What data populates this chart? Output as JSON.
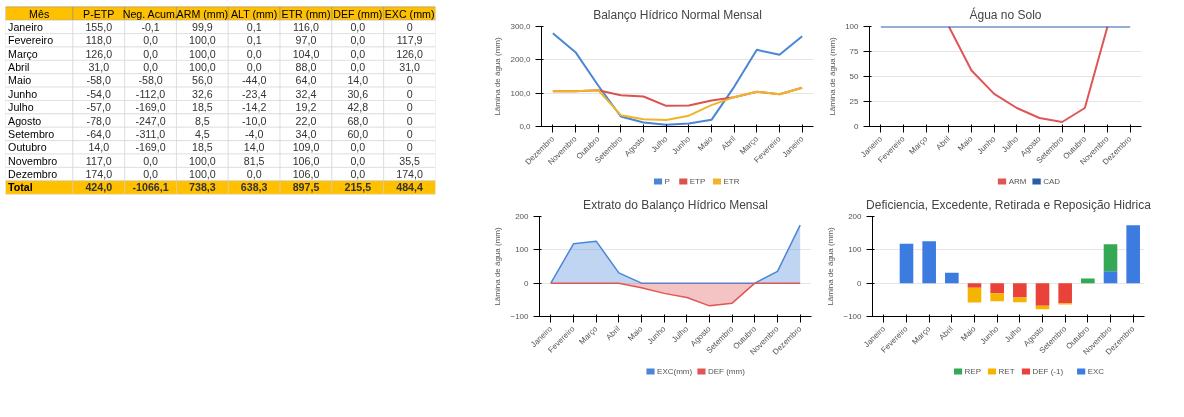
{
  "chart_data": [
    {
      "type": "heatmap",
      "ylabel": "Mês",
      "categories": [
        "P-ETP",
        "Neg. Acum.",
        "ARM (mm)",
        "ALT (mm)",
        "ETR (mm)",
        "DEF (mm)",
        "EXC (mm)"
      ],
      "y_categories": [
        "Janeiro",
        "Fevereiro",
        "Março",
        "Abril",
        "Maio",
        "Junho",
        "Julho",
        "Agosto",
        "Setembro",
        "Outubro",
        "Novembro",
        "Dezembro",
        "Total"
      ],
      "cells": [
        [
          155.0,
          -0.1,
          99.9,
          0.1,
          116.0,
          0.0,
          0
        ],
        [
          118.0,
          0.0,
          100.0,
          0.1,
          97.0,
          0.0,
          117.9
        ],
        [
          126.0,
          0.0,
          100.0,
          0.0,
          104.0,
          0.0,
          126.0
        ],
        [
          31.0,
          0.0,
          100.0,
          0.0,
          88.0,
          0.0,
          31.0
        ],
        [
          -58.0,
          -58.0,
          56.0,
          -44.0,
          64.0,
          14.0,
          0
        ],
        [
          -54.0,
          -112.0,
          32.6,
          -23.4,
          32.4,
          30.6,
          0
        ],
        [
          -57.0,
          -169.0,
          18.5,
          -14.2,
          19.2,
          42.8,
          0
        ],
        [
          -78.0,
          -247.0,
          8.5,
          -10.0,
          22.0,
          68.0,
          0
        ],
        [
          -64.0,
          -311.0,
          4.5,
          -4.0,
          34.0,
          60.0,
          0
        ],
        [
          14.0,
          -169.0,
          18.5,
          14.0,
          109.0,
          0.0,
          0
        ],
        [
          117.0,
          0.0,
          100.0,
          81.5,
          106.0,
          0.0,
          35.5
        ],
        [
          174.0,
          0.0,
          100.0,
          0.0,
          106.0,
          0.0,
          174.0
        ],
        [
          424.0,
          -1066.1,
          738.3,
          638.3,
          897.5,
          215.5,
          484.4
        ]
      ],
      "cell_labels": [
        [
          "155,0",
          "-0,1",
          "99,9",
          "0,1",
          "116,0",
          "0,0",
          "0"
        ],
        [
          "118,0",
          "0,0",
          "100,0",
          "0,1",
          "97,0",
          "0,0",
          "117,9"
        ],
        [
          "126,0",
          "0,0",
          "100,0",
          "0,0",
          "104,0",
          "0,0",
          "126,0"
        ],
        [
          "31,0",
          "0,0",
          "100,0",
          "0,0",
          "88,0",
          "0,0",
          "31,0"
        ],
        [
          "-58,0",
          "-58,0",
          "56,0",
          "-44,0",
          "64,0",
          "14,0",
          "0"
        ],
        [
          "-54,0",
          "-112,0",
          "32,6",
          "-23,4",
          "32,4",
          "30,6",
          "0"
        ],
        [
          "-57,0",
          "-169,0",
          "18,5",
          "-14,2",
          "19,2",
          "42,8",
          "0"
        ],
        [
          "-78,0",
          "-247,0",
          "8,5",
          "-10,0",
          "22,0",
          "68,0",
          "0"
        ],
        [
          "-64,0",
          "-311,0",
          "4,5",
          "-4,0",
          "34,0",
          "60,0",
          "0"
        ],
        [
          "14,0",
          "-169,0",
          "18,5",
          "14,0",
          "109,0",
          "0,0",
          "0"
        ],
        [
          "117,0",
          "0,0",
          "100,0",
          "81,5",
          "106,0",
          "0,0",
          "35,5"
        ],
        [
          "174,0",
          "0,0",
          "100,0",
          "0,0",
          "106,0",
          "0,0",
          "174,0"
        ],
        [
          "424,0",
          "-1066,1",
          "738,3",
          "638,3",
          "897,5",
          "215,5",
          "484,4"
        ]
      ]
    },
    {
      "type": "line",
      "title": "Balanço Hídrico Normal Mensal",
      "ylabel": "Lâmina de água (mm)",
      "categories": [
        "Dezembro",
        "Novembro",
        "Outubro",
        "Setembro",
        "Agosto",
        "Julho",
        "Junho",
        "Maio",
        "Abril",
        "Março",
        "Fevereiro",
        "Janeiro"
      ],
      "ylim": [
        0,
        300
      ],
      "yticks": [
        {
          "value": 0,
          "label": "0,0"
        },
        {
          "value": 100,
          "label": "100,0"
        },
        {
          "value": 200,
          "label": "200,0"
        },
        {
          "value": 300,
          "label": "300,0"
        }
      ],
      "grid": "y",
      "legend": "bottom",
      "series": [
        {
          "name": "P",
          "color": "#4a86d8",
          "values": [
            280,
            223,
            123,
            30,
            12,
            5,
            9,
            20,
            119,
            230,
            215,
            271
          ]
        },
        {
          "name": "ETP",
          "color": "#d9534f",
          "values": [
            106,
            106,
            109,
            94,
            90,
            62,
            63,
            78,
            88,
            104,
            97,
            116
          ]
        },
        {
          "name": "ETR",
          "color": "#f0b429",
          "values": [
            106,
            106,
            109,
            34,
            22,
            19.2,
            32.4,
            64,
            88,
            104,
            97,
            116
          ]
        }
      ]
    },
    {
      "type": "line",
      "title": "Água no Solo",
      "ylabel": "Lâmina de água (mm)",
      "categories": [
        "Janeiro",
        "Fevereiro",
        "Março",
        "Abril",
        "Maio",
        "Junho",
        "Julho",
        "Agosto",
        "Setembro",
        "Outubro",
        "Novembro",
        "Dezembro"
      ],
      "ylim": [
        0,
        100
      ],
      "yticks": [
        0,
        25,
        50,
        75,
        100
      ],
      "grid": "y",
      "legend": "bottom",
      "series": [
        {
          "name": "ARM",
          "color": "#e05555",
          "values": [
            null,
            null,
            null,
            100,
            56,
            32.6,
            18.5,
            8.5,
            4.5,
            18.5,
            100,
            null
          ]
        },
        {
          "name": "CAD",
          "color": "#2a5caa",
          "values": [
            100,
            100,
            100,
            100,
            100,
            100,
            100,
            100,
            100,
            100,
            100,
            100
          ]
        }
      ]
    },
    {
      "type": "area",
      "title": "Extrato do Balanço Hídrico Mensal",
      "ylabel": "Lâmina de água (mm)",
      "categories": [
        "Janeiro",
        "Fevereiro",
        "Março",
        "Abril",
        "Maio",
        "Junho",
        "Julho",
        "Agosto",
        "Setembro",
        "Outubro",
        "Novembro",
        "Dezembro"
      ],
      "ylim": [
        -100,
        200
      ],
      "yticks": [
        -100,
        0,
        100,
        200
      ],
      "grid": "y",
      "legend": "bottom",
      "series": [
        {
          "name": "EXC(mm)",
          "color": "#4a86d8",
          "values": [
            0,
            117.9,
            126,
            31,
            0,
            0,
            0,
            0,
            0,
            0,
            35.5,
            174
          ]
        },
        {
          "name": "DEF (mm)",
          "color": "#e05555",
          "values": [
            0,
            0,
            0,
            0,
            -14,
            -30.6,
            -42.8,
            -68,
            -60,
            0,
            0,
            0
          ]
        }
      ]
    },
    {
      "type": "bar",
      "stacked": true,
      "title": "Deficiencia, Excedente, Retirada e Reposição Hidrica",
      "ylabel": "Lâmina de água (mm)",
      "categories": [
        "Janeiro",
        "Fevereiro",
        "Março",
        "Abril",
        "Maio",
        "Junho",
        "Julho",
        "Agosto",
        "Setembro",
        "Outubro",
        "Novembro",
        "Dezembro"
      ],
      "ylim": [
        -100,
        200
      ],
      "yticks": [
        -100,
        0,
        100,
        200
      ],
      "grid": "y",
      "legend": "bottom",
      "series": [
        {
          "name": "EXC",
          "color": "#3c7be0",
          "values": [
            null,
            117.9,
            126,
            31,
            null,
            null,
            null,
            null,
            null,
            null,
            35.5,
            174
          ]
        },
        {
          "name": "DEF (-1)",
          "color": "#e8423a",
          "values": [
            null,
            null,
            null,
            null,
            -14,
            -30.6,
            -42.8,
            -68,
            -60,
            null,
            null,
            null
          ]
        },
        {
          "name": "RET",
          "color": "#f5b400",
          "values": [
            null,
            null,
            null,
            null,
            -44,
            -23.4,
            -14.2,
            -10,
            -4,
            null,
            null,
            null
          ]
        },
        {
          "name": "REP",
          "color": "#34a853",
          "values": [
            null,
            null,
            null,
            null,
            null,
            null,
            null,
            null,
            null,
            14,
            81.5,
            null
          ]
        }
      ]
    }
  ]
}
